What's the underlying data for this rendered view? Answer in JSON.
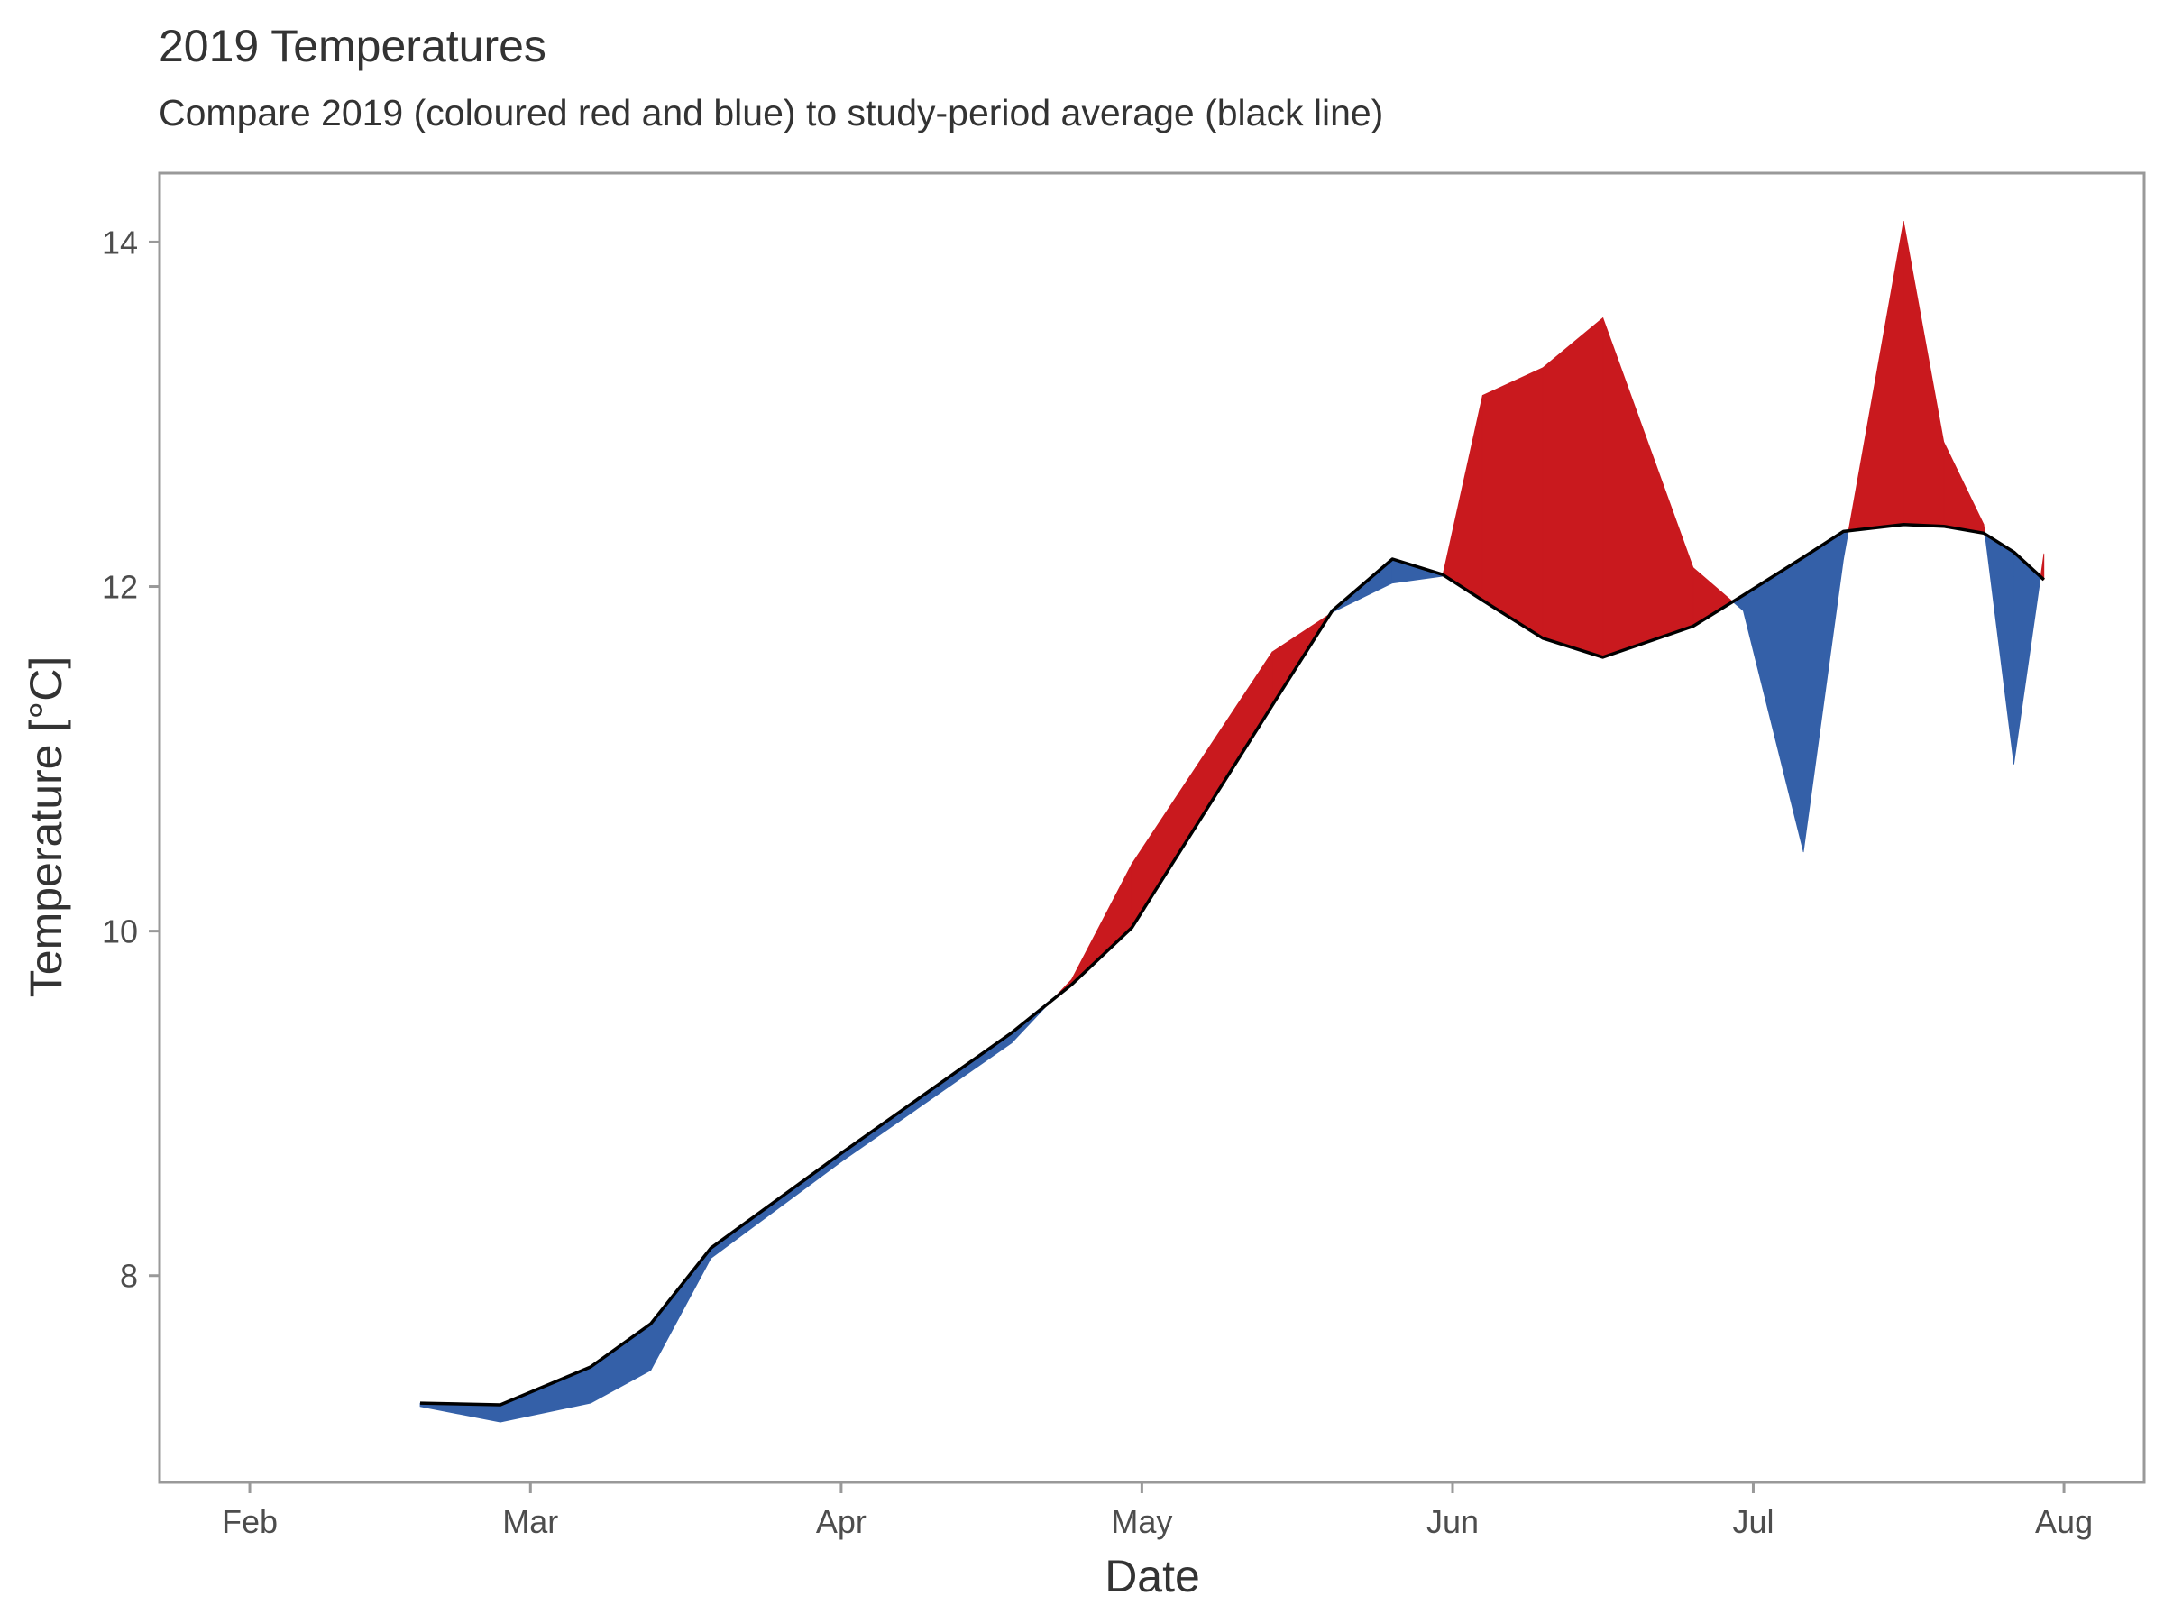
{
  "chart_data": {
    "type": "area",
    "title": "2019 Temperatures",
    "subtitle": "Compare 2019 (coloured red and blue) to study-period average (black line)",
    "xlabel": "Date",
    "ylabel": "Temperature [°C]",
    "x_ticks": [
      "Feb",
      "Mar",
      "Apr",
      "May",
      "Jun",
      "Jul",
      "Aug"
    ],
    "x_tick_dates": [
      "2019-02-01",
      "2019-03-01",
      "2019-04-01",
      "2019-05-01",
      "2019-06-01",
      "2019-07-01",
      "2019-08-01"
    ],
    "y_ticks": [
      8,
      10,
      12,
      14
    ],
    "xlim": [
      "2019-01-23",
      "2019-08-09"
    ],
    "ylim": [
      6.8,
      14.4
    ],
    "grid": false,
    "colors": {
      "above": "#c9191e",
      "below": "#3460a8",
      "average": "#000000",
      "frame": "#999999"
    },
    "series": [
      {
        "role": "average",
        "x": [
          "2019-02-18",
          "2019-02-26",
          "2019-03-07",
          "2019-03-13",
          "2019-03-19",
          "2019-04-01",
          "2019-04-18",
          "2019-04-24",
          "2019-04-30",
          "2019-05-14",
          "2019-05-20",
          "2019-05-26",
          "2019-05-31",
          "2019-06-04",
          "2019-06-10",
          "2019-06-16",
          "2019-06-25",
          "2019-06-30",
          "2019-07-06",
          "2019-07-10",
          "2019-07-16",
          "2019-07-20",
          "2019-07-24",
          "2019-07-27",
          "2019-07-30"
        ],
        "y": [
          7.26,
          7.25,
          7.47,
          7.72,
          8.16,
          8.71,
          9.41,
          9.69,
          10.02,
          11.31,
          11.86,
          12.16,
          12.07,
          11.92,
          11.7,
          11.59,
          11.77,
          11.95,
          12.17,
          12.32,
          12.36,
          12.35,
          12.31,
          12.2,
          12.04
        ]
      },
      {
        "role": "2019",
        "x": [
          "2019-02-18",
          "2019-02-26",
          "2019-03-07",
          "2019-03-13",
          "2019-03-19",
          "2019-04-01",
          "2019-04-18",
          "2019-04-24",
          "2019-04-30",
          "2019-05-14",
          "2019-05-20",
          "2019-05-26",
          "2019-05-31",
          "2019-06-04",
          "2019-06-10",
          "2019-06-16",
          "2019-06-25",
          "2019-06-30",
          "2019-07-06",
          "2019-07-10",
          "2019-07-16",
          "2019-07-20",
          "2019-07-24",
          "2019-07-27",
          "2019-07-30"
        ],
        "y": [
          7.24,
          7.15,
          7.26,
          7.45,
          8.1,
          8.66,
          9.35,
          9.72,
          10.39,
          11.62,
          11.85,
          12.02,
          12.06,
          13.11,
          13.27,
          13.56,
          12.11,
          11.86,
          10.46,
          12.16,
          14.12,
          12.84,
          12.36,
          10.97,
          12.19
        ]
      }
    ]
  }
}
